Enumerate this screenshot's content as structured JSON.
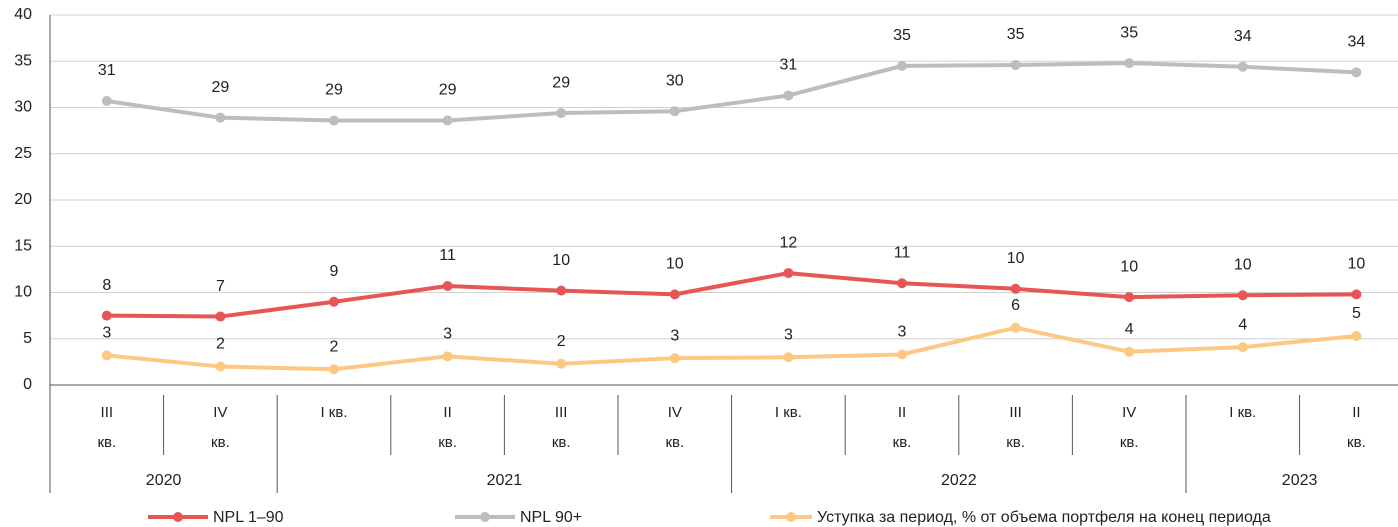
{
  "chart_data": {
    "type": "line",
    "categories": [
      "III кв.",
      "IV кв.",
      "I кв.",
      "II кв.",
      "III кв.",
      "IV кв.",
      "I кв.",
      "II кв.",
      "III кв.",
      "IV кв.",
      "I кв.",
      "II кв."
    ],
    "year_groups": [
      {
        "label": "2020",
        "span": 2
      },
      {
        "label": "2021",
        "span": 4
      },
      {
        "label": "2022",
        "span": 4
      },
      {
        "label": "2023",
        "span": 2
      }
    ],
    "series": [
      {
        "name": "NPL 1–90",
        "color": "#e85555",
        "values": [
          7.5,
          7.4,
          9.0,
          10.7,
          10.2,
          9.8,
          12.1,
          11.0,
          10.4,
          9.5,
          9.7,
          9.8
        ],
        "value_labels": [
          "8",
          "7",
          "9",
          "11",
          "10",
          "10",
          "12",
          "11",
          "10",
          "10",
          "10",
          "10"
        ]
      },
      {
        "name": "NPL 90+",
        "color": "#bdbdbd",
        "values": [
          30.7,
          28.9,
          28.6,
          28.6,
          29.4,
          29.6,
          31.3,
          34.5,
          34.6,
          34.8,
          34.4,
          33.8
        ],
        "value_labels": [
          "31",
          "29",
          "29",
          "29",
          "29",
          "30",
          "31",
          "35",
          "35",
          "35",
          "34",
          "34"
        ]
      },
      {
        "name": "Уступка за период, % от объема портфеля на конец периода",
        "color": "#fdc882",
        "values": [
          3.2,
          2.0,
          1.7,
          3.1,
          2.3,
          2.9,
          3.0,
          3.3,
          6.2,
          3.6,
          4.1,
          5.3
        ],
        "value_labels": [
          "3",
          "2",
          "2",
          "3",
          "2",
          "3",
          "3",
          "3",
          "6",
          "4",
          "4",
          "5"
        ]
      }
    ],
    "ylim": [
      0,
      40
    ],
    "yticks": [
      0,
      5,
      10,
      15,
      20,
      25,
      30,
      35,
      40
    ],
    "grid": true
  }
}
